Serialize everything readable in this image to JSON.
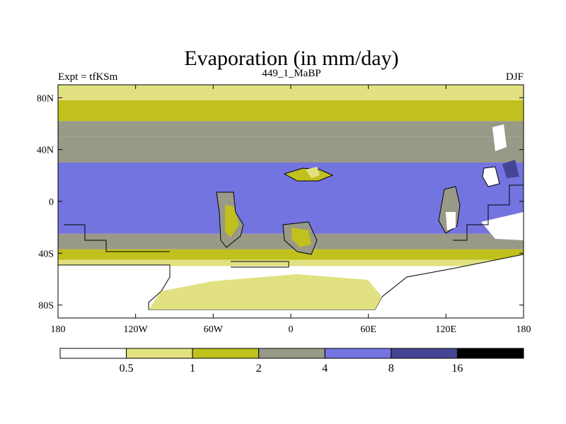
{
  "chart_data": {
    "type": "heatmap",
    "title": "Evaporation (in mm/day)",
    "left_string": "Expt = tfKSm",
    "center_string": "449_1_MaBP",
    "right_string": "DJF",
    "x_ticks": [
      {
        "value": -180,
        "label": "180"
      },
      {
        "value": -120,
        "label": "120W"
      },
      {
        "value": -60,
        "label": "60W"
      },
      {
        "value": 0,
        "label": "0"
      },
      {
        "value": 60,
        "label": "60E"
      },
      {
        "value": 120,
        "label": "120E"
      },
      {
        "value": 180,
        "label": "180"
      }
    ],
    "y_ticks": [
      {
        "value": 80,
        "label": "80N"
      },
      {
        "value": 40,
        "label": "40N"
      },
      {
        "value": 0,
        "label": "0"
      },
      {
        "value": -40,
        "label": "40S"
      },
      {
        "value": -80,
        "label": "80S"
      }
    ],
    "xlim": [
      -180,
      180
    ],
    "ylim": [
      -90,
      90
    ],
    "colorbar": {
      "levels": [
        "0.5",
        "1",
        "2",
        "4",
        "8",
        "16"
      ],
      "colors": [
        "#ffffff",
        "#e1e182",
        "#c0c01e",
        "#999988",
        "#7474e0",
        "#454596",
        "#000000"
      ]
    },
    "bands": [
      {
        "name": "north-polar",
        "lat": [
          90,
          78
        ],
        "level": 1
      },
      {
        "name": "north-high",
        "lat": [
          78,
          62
        ],
        "level": 2
      },
      {
        "name": "north-mid",
        "lat": [
          62,
          50
        ],
        "level": 3
      },
      {
        "name": "north-sub",
        "lat": [
          50,
          30
        ],
        "level": 3
      },
      {
        "name": "tropics",
        "lat": [
          30,
          -25
        ],
        "level": 4
      },
      {
        "name": "south-sub",
        "lat": [
          -25,
          -37
        ],
        "level": 3
      },
      {
        "name": "south-mid",
        "lat": [
          -37,
          -45
        ],
        "level": 2
      },
      {
        "name": "south-edge",
        "lat": [
          -45,
          -50
        ],
        "level": 1
      },
      {
        "name": "south-polar",
        "lat": [
          -50,
          -90
        ],
        "level": 0
      }
    ]
  }
}
